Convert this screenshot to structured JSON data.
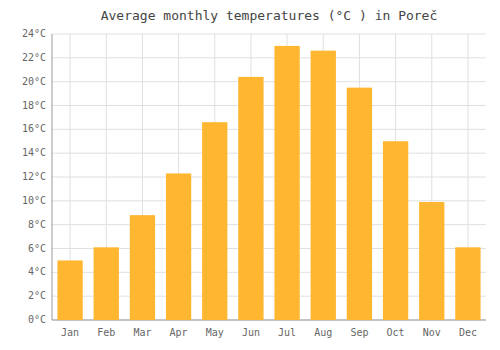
{
  "chart_data": {
    "type": "bar",
    "title": "Average monthly temperatures (°C ) in Poreč",
    "categories": [
      "Jan",
      "Feb",
      "Mar",
      "Apr",
      "May",
      "Jun",
      "Jul",
      "Aug",
      "Sep",
      "Oct",
      "Nov",
      "Dec"
    ],
    "values": [
      5.0,
      6.1,
      8.8,
      12.3,
      16.6,
      20.4,
      23.0,
      22.6,
      19.5,
      15.0,
      9.9,
      6.1
    ],
    "color": "#FFB732",
    "ylim": [
      0,
      24
    ],
    "yticks": [
      {
        "value": 0,
        "label": "0°C"
      },
      {
        "value": 2,
        "label": "2°C"
      },
      {
        "value": 4,
        "label": "4°C"
      },
      {
        "value": 6,
        "label": "6°C"
      },
      {
        "value": 8,
        "label": "8°C"
      },
      {
        "value": 10,
        "label": "10°C"
      },
      {
        "value": 12,
        "label": "12°C"
      },
      {
        "value": 14,
        "label": "14°C"
      },
      {
        "value": 16,
        "label": "16°C"
      },
      {
        "value": 18,
        "label": "18°C"
      },
      {
        "value": 20,
        "label": "20°C"
      },
      {
        "value": 22,
        "label": "22°C"
      },
      {
        "value": 24,
        "label": "24°C"
      }
    ],
    "grid": true
  }
}
